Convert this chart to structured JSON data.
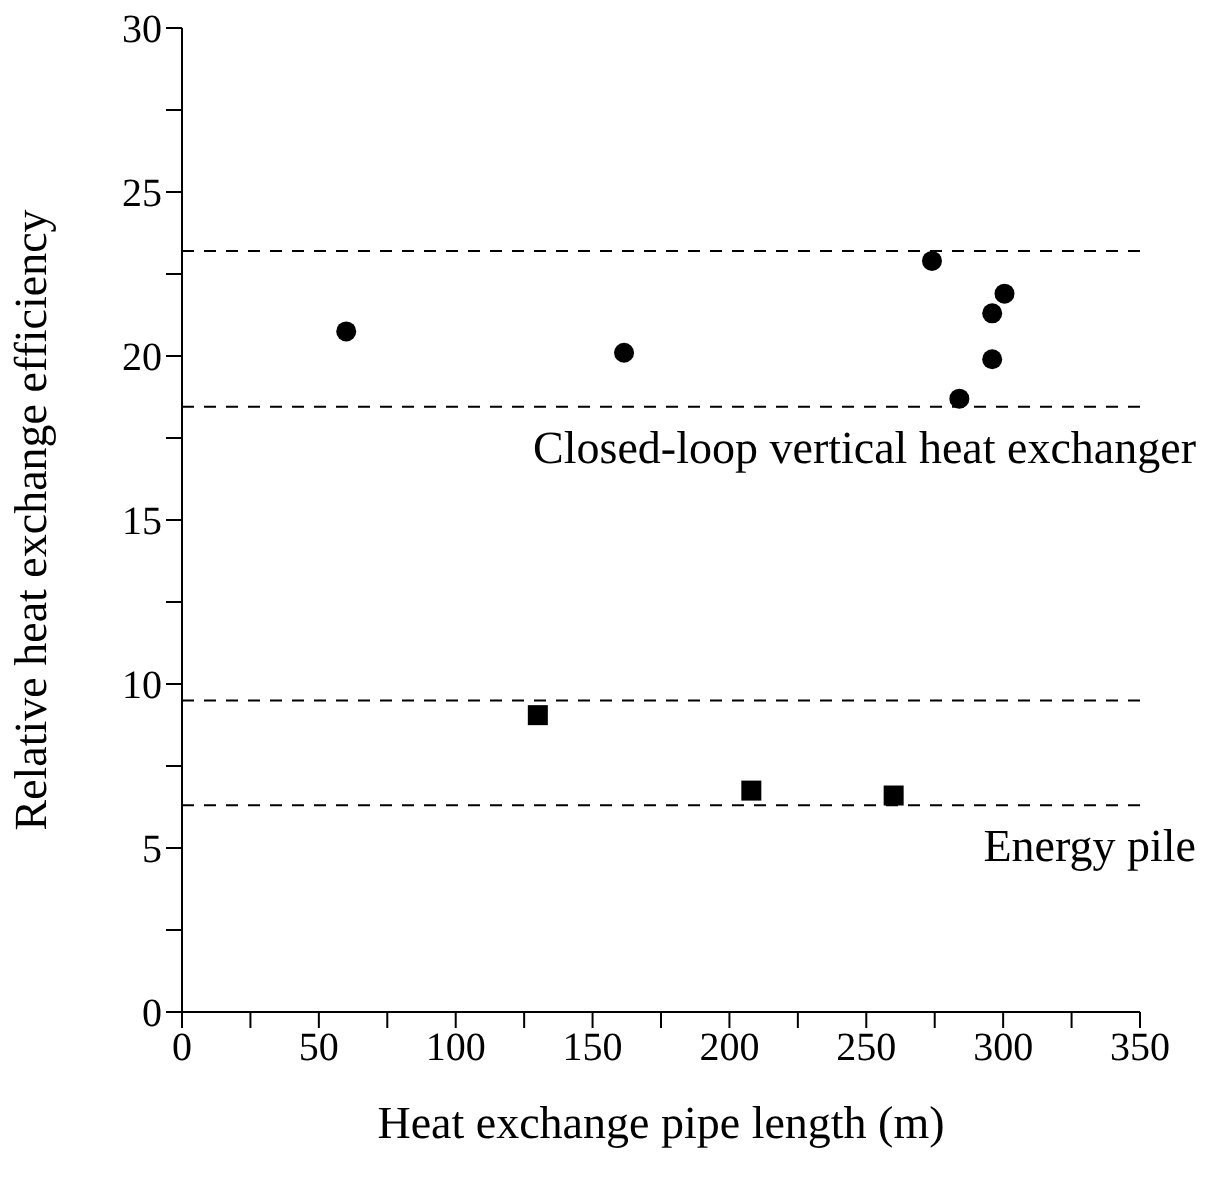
{
  "chart_data": {
    "type": "scatter",
    "xlabel": "Heat exchange pipe length (m)",
    "ylabel": "Relative heat exchange efficiency",
    "series": [
      {
        "color": "#000000",
        "marker": "circle",
        "x": [
          60,
          161.5,
          274,
          284,
          296,
          296,
          300.5
        ],
        "values": [
          20.75,
          20.1,
          22.9,
          18.7,
          21.3,
          19.9,
          21.9
        ]
      },
      {
        "color": "#000000",
        "marker": "square",
        "x": [
          130,
          208,
          260
        ],
        "values": [
          9.05,
          6.75,
          6.6
        ]
      }
    ],
    "xlim": [
      0,
      350
    ],
    "ylim": [
      0,
      30
    ],
    "xticks": [
      0,
      {
        "value": 25,
        "label": null
      },
      50,
      {
        "value": 75,
        "label": null
      },
      100,
      {
        "value": 125,
        "label": null
      },
      150,
      {
        "value": 175,
        "label": null
      },
      200,
      {
        "value": 225,
        "label": null
      },
      250,
      {
        "value": 275,
        "label": null
      },
      300,
      {
        "value": 325,
        "label": null
      },
      350
    ],
    "yticks": [
      0,
      {
        "value": 2.5,
        "label": null
      },
      5,
      {
        "value": 7.5,
        "label": null
      },
      10,
      {
        "value": 12.5,
        "label": null
      },
      15,
      {
        "value": 17.5,
        "label": null
      },
      20,
      {
        "value": 22.5,
        "label": null
      },
      25,
      {
        "value": 27.5,
        "label": null
      },
      30
    ],
    "ref_lines": [
      {
        "axis": "y",
        "value": 23.2,
        "line_style": "dashed",
        "color": "#000000"
      },
      {
        "axis": "y",
        "value": 18.45,
        "line_style": "dashed",
        "color": "#000000",
        "label": "Closed-loop vertical heat exchanger"
      },
      {
        "axis": "y",
        "value": 9.5,
        "line_style": "dashed",
        "color": "#000000"
      },
      {
        "axis": "y",
        "value": 6.3,
        "line_style": "dashed",
        "color": "#000000",
        "label": "Energy pile"
      }
    ],
    "grid": false,
    "legend": false
  }
}
